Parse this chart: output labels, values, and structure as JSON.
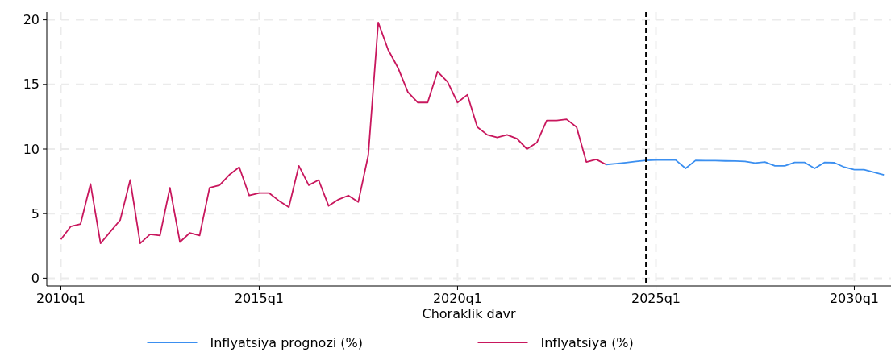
{
  "chart_data": {
    "type": "line",
    "xlabel": "Choraklik davr",
    "xlim": [
      "2009-08-24",
      "2030-12-05"
    ],
    "ylim": [
      -0.6,
      20.6
    ],
    "xticks": [
      {
        "value": "2010-01",
        "label": "2010q1"
      },
      {
        "value": "2015-01",
        "label": "2015q1"
      },
      {
        "value": "2020-01",
        "label": "2020q1"
      },
      {
        "value": "2025-01",
        "label": "2025q1"
      },
      {
        "value": "2030-01",
        "label": "2030q1"
      }
    ],
    "yticks": [
      0,
      5,
      10,
      15,
      20
    ],
    "grid": true,
    "legend": "bottom",
    "line_style": "solid",
    "marker": "none",
    "ref_lines": [
      {
        "axis": "x",
        "value": "2024-10",
        "color": "#000000",
        "line_style": "dashed"
      }
    ],
    "series": [
      {
        "name": "Inflyatsiya prognozi (%)",
        "color": "#3b8ff0",
        "x": [
          "2023-10",
          "2024-01",
          "2024-04",
          "2024-07",
          "2024-10",
          "2025-01",
          "2025-04",
          "2025-07",
          "2025-10",
          "2026-01",
          "2026-04",
          "2026-07",
          "2026-10",
          "2027-01",
          "2027-04",
          "2027-07",
          "2027-10",
          "2028-01",
          "2028-04",
          "2028-07",
          "2028-10",
          "2029-01",
          "2029-04",
          "2029-07",
          "2029-10",
          "2030-01",
          "2030-04",
          "2030-07",
          "2030-10"
        ],
        "values": [
          8.8,
          8.87,
          8.95,
          9.04,
          9.12,
          9.15,
          9.15,
          9.15,
          8.5,
          9.12,
          9.1,
          9.1,
          9.08,
          9.07,
          9.04,
          8.92,
          9.0,
          8.7,
          8.7,
          8.96,
          8.96,
          8.5,
          8.96,
          8.94,
          8.6,
          8.4,
          8.4,
          8.2,
          8.0
        ]
      },
      {
        "name": "Inflyatsiya (%)",
        "color": "#c8175d",
        "x": [
          "2010-01",
          "2010-04",
          "2010-07",
          "2010-10",
          "2011-01",
          "2011-04",
          "2011-07",
          "2011-10",
          "2012-01",
          "2012-04",
          "2012-07",
          "2012-10",
          "2013-01",
          "2013-04",
          "2013-07",
          "2013-10",
          "2014-01",
          "2014-04",
          "2014-07",
          "2014-10",
          "2015-01",
          "2015-04",
          "2015-07",
          "2015-10",
          "2016-01",
          "2016-04",
          "2016-07",
          "2016-10",
          "2017-01",
          "2017-04",
          "2017-07",
          "2017-10",
          "2018-01",
          "2018-04",
          "2018-07",
          "2018-10",
          "2019-01",
          "2019-04",
          "2019-07",
          "2019-10",
          "2020-01",
          "2020-04",
          "2020-07",
          "2020-10",
          "2021-01",
          "2021-04",
          "2021-07",
          "2021-10",
          "2022-01",
          "2022-04",
          "2022-07",
          "2022-10",
          "2023-01",
          "2023-04",
          "2023-07",
          "2023-10"
        ],
        "values": [
          3.0,
          4.0,
          4.2,
          7.3,
          2.7,
          3.6,
          4.5,
          7.6,
          2.7,
          3.4,
          3.3,
          7.0,
          2.8,
          3.5,
          3.3,
          7.0,
          7.2,
          8.0,
          8.6,
          6.4,
          6.6,
          6.6,
          6.0,
          5.5,
          8.7,
          7.2,
          7.6,
          5.6,
          6.1,
          6.4,
          5.9,
          9.5,
          19.8,
          17.7,
          16.3,
          14.4,
          13.6,
          13.6,
          16.0,
          15.2,
          13.6,
          14.2,
          11.7,
          11.1,
          10.9,
          11.1,
          10.8,
          10.0,
          10.5,
          12.2,
          12.2,
          12.3,
          11.7,
          9.0,
          9.2,
          8.8
        ]
      }
    ]
  }
}
